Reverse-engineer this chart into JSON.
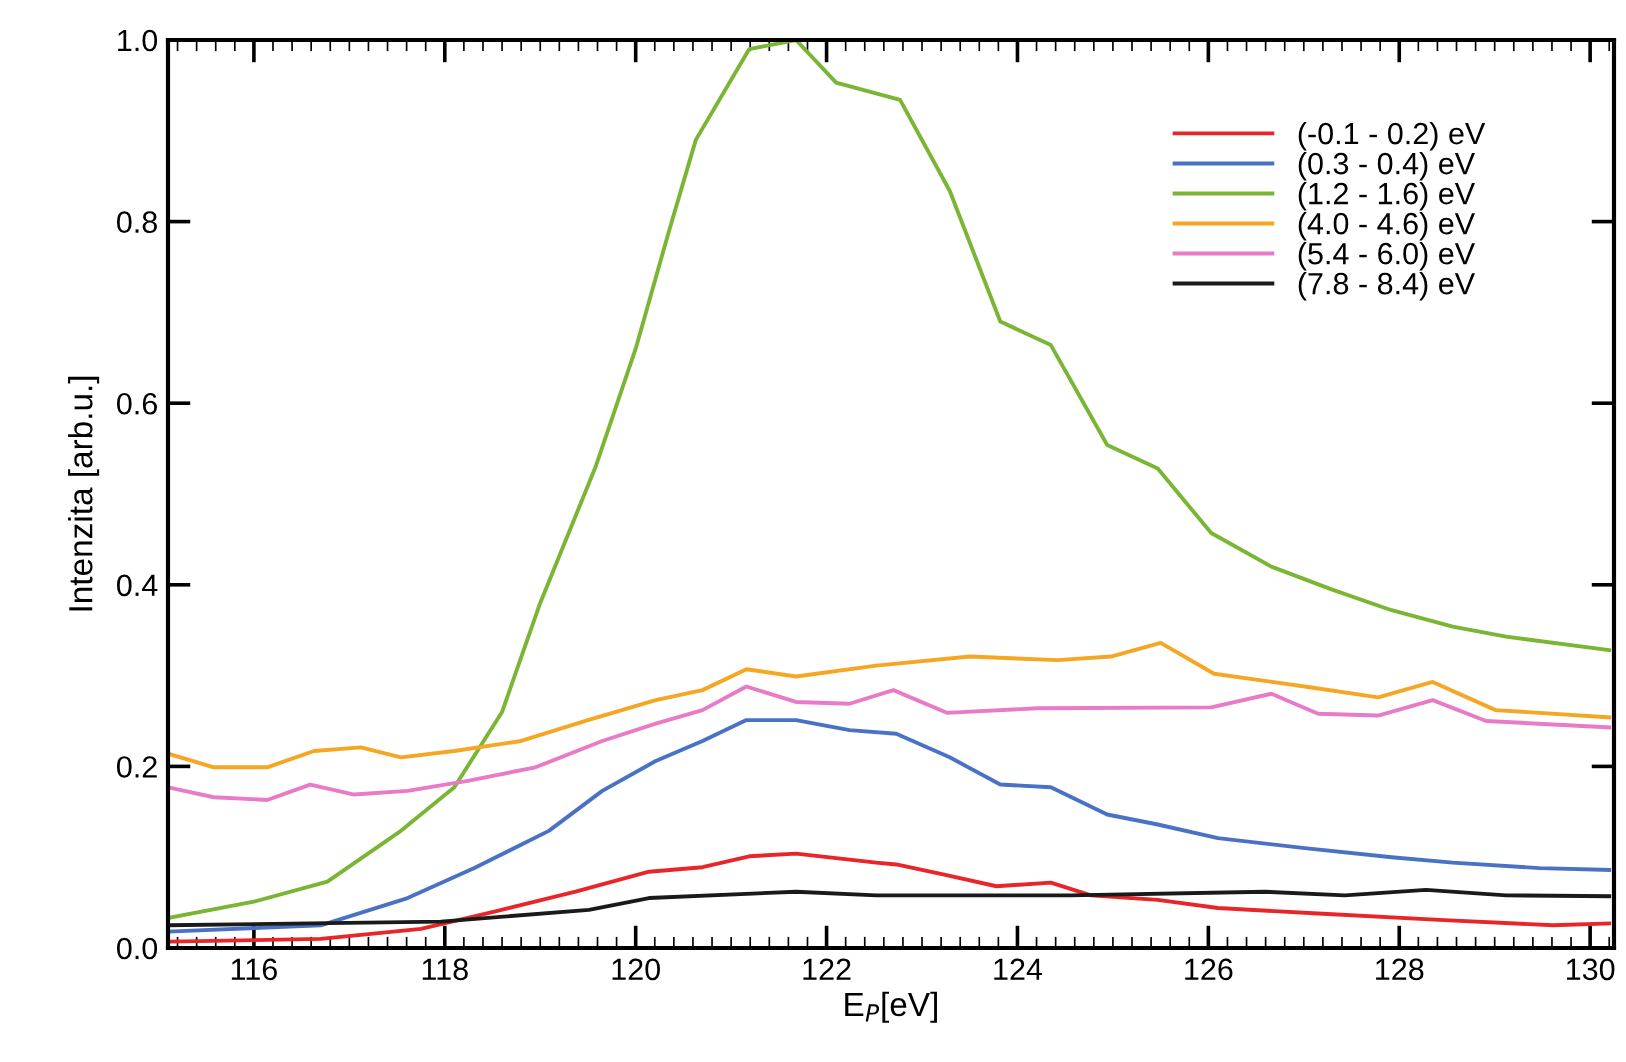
{
  "chart_data": {
    "type": "line",
    "xlabel": "E$_{P}$[eV]",
    "ylabel": "Intenzita [arb.u.]",
    "xlim": [
      115.1,
      130.25
    ],
    "ylim": [
      0,
      1.0
    ],
    "xticks": [
      116,
      118,
      120,
      122,
      124,
      126,
      128,
      130
    ],
    "yticks": [
      {
        "value": 0,
        "label": "0.0"
      },
      {
        "value": 0.2,
        "label": "0.2"
      },
      {
        "value": 0.4,
        "label": "0.4"
      },
      {
        "value": 0.6,
        "label": "0.6"
      },
      {
        "value": 0.8,
        "label": "0.8"
      },
      {
        "value": 1.0,
        "label": "1.0"
      }
    ],
    "grid": false,
    "legend": "top right",
    "marker": "none",
    "series": [
      {
        "name": "(-0.1 - 0.2) eV",
        "color": "#e8262a",
        "x": [
          115.1,
          116.7,
          117.75,
          118.52,
          119.37,
          120.14,
          120.7,
          121.19,
          121.68,
          122.52,
          122.73,
          123.22,
          123.78,
          124.35,
          124.77,
          125.47,
          126.1,
          127.15,
          128.42,
          129.61,
          130.2
        ],
        "values": [
          0.007,
          0.01,
          0.021,
          0.04,
          0.062,
          0.084,
          0.089,
          0.101,
          0.104,
          0.094,
          0.092,
          0.081,
          0.068,
          0.072,
          0.058,
          0.053,
          0.044,
          0.038,
          0.031,
          0.025,
          0.027
        ]
      },
      {
        "name": "(0.3 - 0.4) eV",
        "color": "#4a72c4",
        "x": [
          115.1,
          116.7,
          117.61,
          118.31,
          119.09,
          119.65,
          120.21,
          120.7,
          121.16,
          121.68,
          122.24,
          122.73,
          123.29,
          123.82,
          124.35,
          124.94,
          125.47,
          126.1,
          127.01,
          127.92,
          128.56,
          129.47,
          130.2
        ],
        "values": [
          0.018,
          0.025,
          0.055,
          0.088,
          0.129,
          0.173,
          0.206,
          0.228,
          0.251,
          0.251,
          0.24,
          0.236,
          0.21,
          0.18,
          0.177,
          0.147,
          0.136,
          0.121,
          0.11,
          0.1,
          0.094,
          0.088,
          0.086
        ]
      },
      {
        "name": "(1.2 - 1.6) eV",
        "color": "#7ab534",
        "x": [
          115.1,
          116.0,
          116.77,
          117.54,
          118.1,
          118.6,
          119.0,
          119.58,
          120.0,
          120.35,
          120.63,
          121.19,
          121.68,
          122.1,
          122.77,
          123.29,
          123.82,
          124.35,
          124.94,
          125.47,
          126.03,
          126.66,
          127.29,
          127.92,
          128.56,
          129.12,
          130.2
        ],
        "values": [
          0.033,
          0.051,
          0.073,
          0.129,
          0.177,
          0.26,
          0.38,
          0.53,
          0.66,
          0.79,
          0.89,
          0.99,
          1.0,
          0.953,
          0.934,
          0.834,
          0.69,
          0.664,
          0.554,
          0.528,
          0.457,
          0.42,
          0.395,
          0.372,
          0.354,
          0.343,
          0.328
        ]
      },
      {
        "name": "(4.0 - 4.6) eV",
        "color": "#f5a623",
        "x": [
          115.1,
          115.58,
          116.14,
          116.63,
          117.12,
          117.54,
          118.1,
          118.8,
          119.5,
          120.21,
          120.7,
          121.16,
          121.68,
          122.52,
          123.5,
          124.42,
          124.98,
          125.5,
          126.06,
          127.01,
          127.78,
          128.35,
          129.01,
          130.2
        ],
        "values": [
          0.214,
          0.199,
          0.199,
          0.217,
          0.221,
          0.21,
          0.217,
          0.228,
          0.251,
          0.273,
          0.284,
          0.307,
          0.299,
          0.311,
          0.321,
          0.317,
          0.321,
          0.336,
          0.302,
          0.288,
          0.276,
          0.293,
          0.262,
          0.254
        ]
      },
      {
        "name": "(5.4 - 6.0) eV",
        "color": "#e87ac8",
        "x": [
          115.1,
          115.58,
          116.14,
          116.59,
          117.05,
          117.61,
          118.24,
          118.95,
          119.65,
          120.21,
          120.7,
          121.16,
          121.68,
          122.24,
          122.7,
          123.26,
          124.21,
          126.03,
          126.66,
          127.15,
          127.78,
          128.35,
          128.91,
          130.2
        ],
        "values": [
          0.177,
          0.166,
          0.163,
          0.18,
          0.169,
          0.173,
          0.184,
          0.199,
          0.228,
          0.247,
          0.262,
          0.288,
          0.271,
          0.269,
          0.284,
          0.259,
          0.264,
          0.265,
          0.28,
          0.258,
          0.256,
          0.273,
          0.25,
          0.243
        ]
      },
      {
        "name": "(7.8 - 8.4) eV",
        "color": "#1a1a1a",
        "x": [
          115.1,
          117.96,
          119.51,
          120.14,
          121.68,
          122.52,
          124.56,
          126.59,
          127.43,
          128.28,
          129.12,
          130.2
        ],
        "values": [
          0.025,
          0.029,
          0.042,
          0.055,
          0.062,
          0.058,
          0.058,
          0.062,
          0.058,
          0.064,
          0.058,
          0.057
        ]
      }
    ]
  }
}
